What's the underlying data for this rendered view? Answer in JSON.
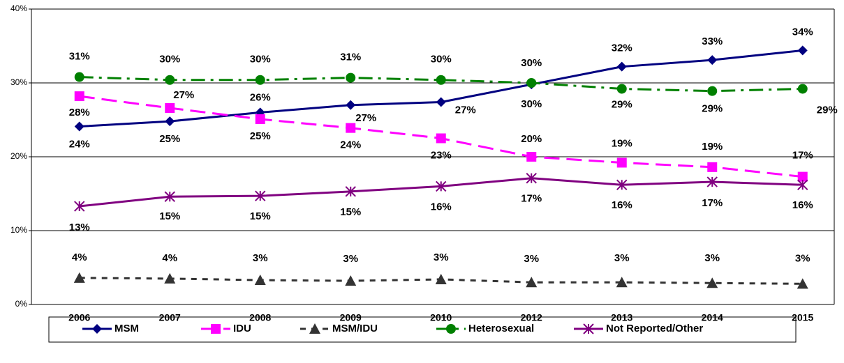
{
  "chart_data": {
    "type": "line",
    "categories": [
      "2006",
      "2007",
      "2008",
      "2009",
      "2010",
      "2012",
      "2013",
      "2014",
      "2015"
    ],
    "ylim": [
      0,
      40
    ],
    "yticks": [
      {
        "value": 0,
        "label": "0%"
      },
      {
        "value": 10,
        "label": "10%"
      },
      {
        "value": 20,
        "label": "20%"
      },
      {
        "value": 30,
        "label": "30%"
      },
      {
        "value": 40,
        "label": "40%"
      }
    ],
    "grid": true,
    "legend": "bottom",
    "series": [
      {
        "name": "MSM",
        "color": "#000080",
        "dash": "solid",
        "marker": "diamond",
        "values": [
          24.1,
          24.8,
          26.0,
          27.0,
          27.4,
          29.8,
          32.2,
          33.1,
          34.4
        ],
        "value_labels": [
          "24%",
          "25%",
          "26%",
          "27%",
          "27%",
          "30%",
          "32%",
          "33%",
          "34%"
        ]
      },
      {
        "name": "IDU",
        "color": "#FF00FF",
        "dash": "dashed",
        "marker": "square",
        "values": [
          28.2,
          26.6,
          25.1,
          23.9,
          22.5,
          20.0,
          19.2,
          18.6,
          17.3
        ],
        "value_labels": [
          "28%",
          "27%",
          "25%",
          "24%",
          "23%",
          "20%",
          "19%",
          "19%",
          "17%"
        ]
      },
      {
        "name": "MSM/IDU",
        "color": "#333333",
        "dash": "short-dashed",
        "marker": "triangle",
        "values": [
          3.6,
          3.5,
          3.3,
          3.2,
          3.4,
          3.0,
          3.0,
          2.9,
          2.8
        ],
        "value_labels": [
          "4%",
          "4%",
          "3%",
          "3%",
          "3%",
          "3%",
          "3%",
          "3%",
          "3%"
        ]
      },
      {
        "name": "Heterosexual",
        "color": "#008000",
        "dash": "dash-dot",
        "marker": "circle",
        "values": [
          30.8,
          30.4,
          30.4,
          30.7,
          30.4,
          30.0,
          29.2,
          28.9,
          29.2
        ],
        "value_labels": [
          "31%",
          "30%",
          "30%",
          "31%",
          "30%",
          "30%",
          "29%",
          "29%",
          "29%"
        ]
      },
      {
        "name": "Not Reported/Other",
        "color": "#800080",
        "dash": "solid",
        "marker": "asterisk",
        "values": [
          13.3,
          14.6,
          14.7,
          15.3,
          16.0,
          17.1,
          16.2,
          16.6,
          16.2
        ],
        "value_labels": [
          "13%",
          "15%",
          "15%",
          "15%",
          "16%",
          "17%",
          "16%",
          "17%",
          "16%"
        ]
      }
    ]
  }
}
